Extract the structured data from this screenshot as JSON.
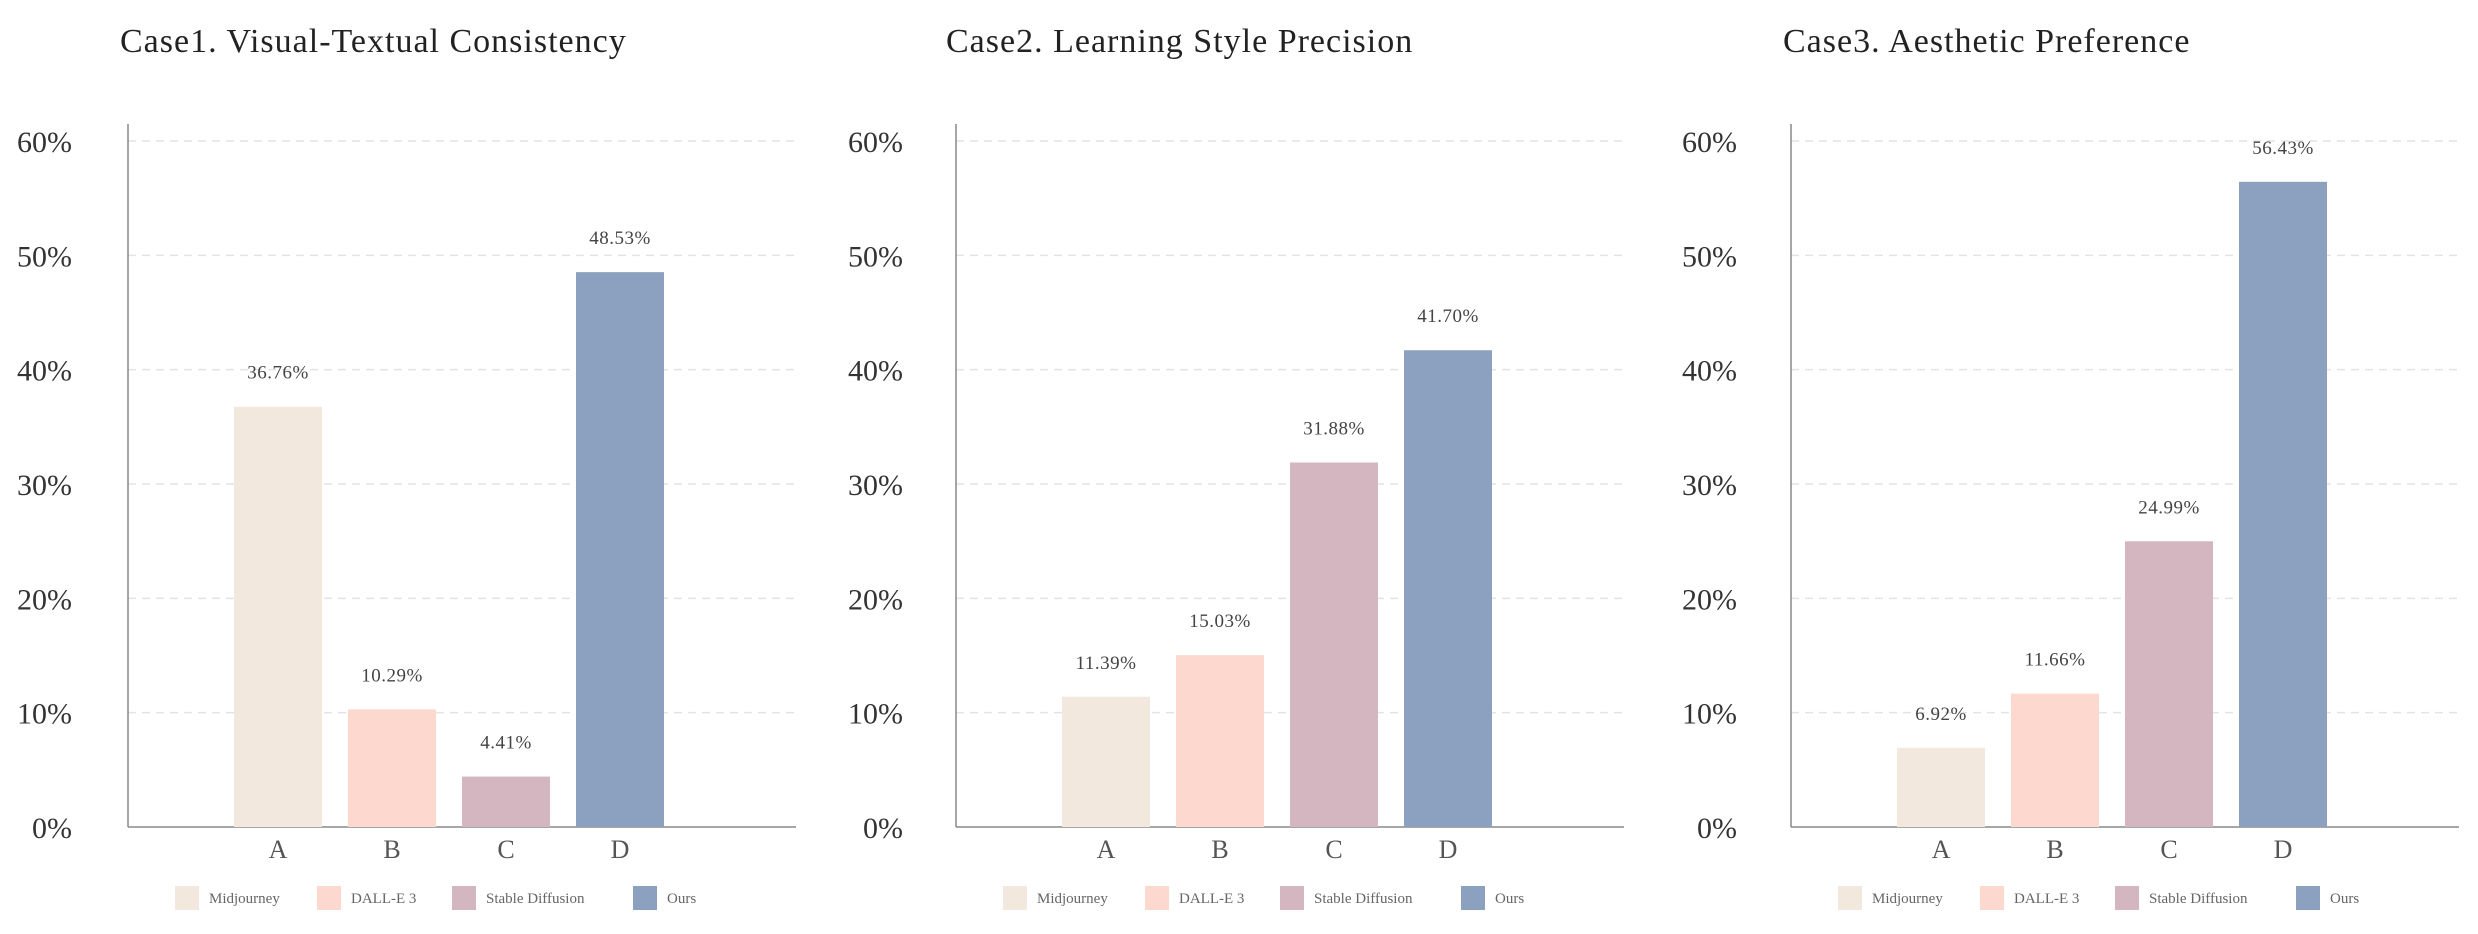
{
  "chart_data": [
    {
      "type": "bar",
      "title": "Case1.  Visual-Textual Consistency",
      "categories": [
        "A",
        "B",
        "C",
        "D"
      ],
      "values": [
        36.76,
        10.29,
        4.41,
        48.53
      ],
      "value_labels": [
        "36.76%",
        "10.29%",
        "4.41%",
        "48.53%"
      ],
      "yticks": [
        "0%",
        "10%",
        "20%",
        "30%",
        "40%",
        "50%",
        "60%"
      ],
      "ylim": [
        0,
        60
      ],
      "grid": true,
      "legend_position": "bottom",
      "legend": [
        "Midjourney",
        "DALL-E 3",
        "Stable Diffusion",
        "Ours"
      ],
      "colors": [
        "#f2e8de",
        "#fdd8cf",
        "#d4b6c0",
        "#8ba1bf"
      ]
    },
    {
      "type": "bar",
      "title": "Case2.    Learning Style Precision",
      "categories": [
        "A",
        "B",
        "C",
        "D"
      ],
      "values": [
        11.39,
        15.03,
        31.88,
        41.7
      ],
      "value_labels": [
        "11.39%",
        "15.03%",
        "31.88%",
        "41.70%"
      ],
      "yticks": [
        "0%",
        "10%",
        "20%",
        "30%",
        "40%",
        "50%",
        "60%"
      ],
      "ylim": [
        0,
        60
      ],
      "grid": true,
      "legend_position": "bottom",
      "legend": [
        "Midjourney",
        "DALL-E 3",
        "Stable Diffusion",
        "Ours"
      ],
      "colors": [
        "#f2e8de",
        "#fdd8cf",
        "#d4b6c0",
        "#8ba1bf"
      ]
    },
    {
      "type": "bar",
      "title": "Case3.       Aesthetic Preference",
      "categories": [
        "A",
        "B",
        "C",
        "D"
      ],
      "values": [
        6.92,
        11.66,
        24.99,
        56.43
      ],
      "value_labels": [
        "6.92%",
        "11.66%",
        "24.99%",
        "56.43%"
      ],
      "yticks": [
        "0%",
        "10%",
        "20%",
        "30%",
        "40%",
        "50%",
        "60%"
      ],
      "ylim": [
        0,
        60
      ],
      "grid": true,
      "legend_position": "bottom",
      "legend": [
        "Midjourney",
        "DALL-E 3",
        "Stable Diffusion",
        "Ours"
      ],
      "colors": [
        "#f2e8de",
        "#fdd8cf",
        "#d4b6c0",
        "#8ba1bf"
      ]
    }
  ]
}
